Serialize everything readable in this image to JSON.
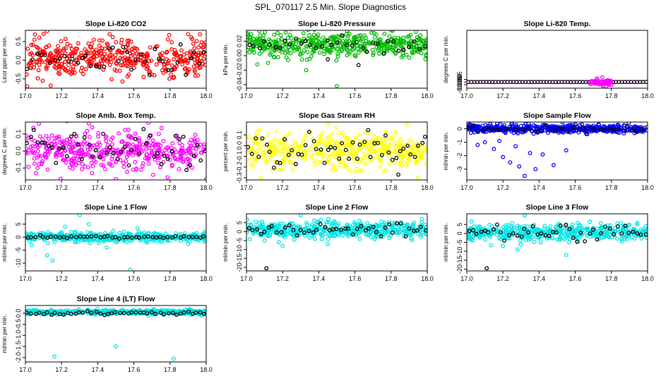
{
  "page_title": "SPL_070117  2.5 Min. Slope Diagnostics",
  "chart_data": [
    {
      "type": "scatter",
      "title": "Slope Li-820 CO2",
      "xlabel": "",
      "ylabel": "Licor ppm per min.",
      "xlim": [
        17.0,
        18.0
      ],
      "ylim": [
        -0.75,
        0.8
      ],
      "xticks": [
        17.0,
        17.2,
        17.4,
        17.6,
        17.8,
        18.0
      ],
      "xtick_labels": [
        "17.0",
        "17.2",
        "17.4",
        "17.6",
        "17.8",
        "18.0"
      ],
      "yticks": [
        -0.5,
        0.0,
        0.5
      ],
      "ytick_labels": [
        "-0.5",
        "0.0",
        "0.5"
      ],
      "series": [
        {
          "color": "#ff0000",
          "n": 420,
          "center": 0.05,
          "spread": 0.24,
          "outliers": [
            [
              17.01,
              -0.7
            ],
            [
              17.12,
              0.78
            ],
            [
              17.05,
              0.55
            ],
            [
              17.14,
              -0.68
            ],
            [
              17.9,
              0.7
            ]
          ]
        },
        {
          "color": "#000000",
          "n": 40,
          "center": 0.05,
          "spread": 0.24,
          "outliers": []
        }
      ],
      "grid": false
    },
    {
      "type": "scatter",
      "title": "Slope Li-820 Pressure",
      "xlabel": "",
      "ylabel": "kPa per min.",
      "xlim": [
        17.0,
        18.0
      ],
      "ylim": [
        -0.045,
        0.035
      ],
      "xticks": [
        17.0,
        17.2,
        17.4,
        17.6,
        17.8,
        18.0
      ],
      "xtick_labels": [
        "17.0",
        "17.2",
        "17.4",
        "17.6",
        "17.8",
        "18.0"
      ],
      "yticks": [
        -0.04,
        -0.02,
        0.0,
        0.02
      ],
      "ytick_labels": [
        "-0.04",
        "-0.02",
        "0.00",
        "0.02"
      ],
      "series": [
        {
          "color": "#00bb00",
          "n": 440,
          "center": 0.015,
          "spread": 0.008,
          "outliers": [
            [
              17.06,
              -0.012
            ],
            [
              17.5,
              -0.042
            ],
            [
              17.99,
              -0.005
            ],
            [
              17.12,
              -0.01
            ],
            [
              17.33,
              -0.02
            ]
          ]
        },
        {
          "color": "#000000",
          "n": 35,
          "center": 0.015,
          "spread": 0.006,
          "outliers": [
            [
              17.45,
              -0.005
            ],
            [
              17.62,
              -0.013
            ]
          ]
        }
      ],
      "grid": false
    },
    {
      "type": "scatter",
      "title": "Slope Li-820 Temp.",
      "xlabel": "",
      "ylabel": "degrees C per min.",
      "xlim": [
        17.0,
        18.0
      ],
      "ylim": [
        -0.012,
        0.1
      ],
      "xticks": [
        17.0,
        17.2,
        17.4,
        17.6,
        17.8,
        18.0
      ],
      "xtick_labels": [
        "17.0",
        "17.2",
        "17.4",
        "17.6",
        "17.8",
        "18.0"
      ],
      "yticks": [
        -0.005,
        0.0,
        0.005
      ],
      "ytick_labels": [
        "-0.005",
        "0.000",
        "0.005"
      ],
      "series": [
        {
          "color": "#ff00ff",
          "n": 60,
          "center": 0.0,
          "spread": 0.0,
          "outliers": []
        },
        {
          "color": "#000000",
          "n": 60,
          "center": 0.0,
          "spread": 0.0,
          "outliers": []
        }
      ],
      "grid": false
    },
    {
      "type": "scatter",
      "title": "Slope Amb. Box Temp.",
      "xlabel": "",
      "ylabel": "degrees C per min.",
      "xlim": [
        17.0,
        18.0
      ],
      "ylim": [
        -0.17,
        0.17
      ],
      "xticks": [
        17.0,
        17.2,
        17.4,
        17.6,
        17.8,
        18.0
      ],
      "xtick_labels": [
        "17.0",
        "17.2",
        "17.4",
        "17.6",
        "17.8",
        "18.0"
      ],
      "yticks": [
        -0.1,
        0.0,
        0.1
      ],
      "ytick_labels": [
        "-0.1",
        "0.0",
        "0.1"
      ],
      "series": [
        {
          "color": "#ff00ff",
          "n": 420,
          "center": 0.0,
          "spread": 0.06,
          "outliers": [
            [
              17.68,
              0.165
            ],
            [
              17.5,
              -0.165
            ],
            [
              18.0,
              -0.165
            ]
          ]
        },
        {
          "color": "#000000",
          "n": 50,
          "center": 0.0,
          "spread": 0.06,
          "outliers": []
        }
      ],
      "grid": false
    },
    {
      "type": "scatter",
      "title": "Slope Gas Stream RH",
      "xlabel": "",
      "ylabel": "percent per min.",
      "xlim": [
        17.0,
        18.0
      ],
      "ylim": [
        -0.32,
        0.22
      ],
      "xticks": [
        17.0,
        17.2,
        17.4,
        17.6,
        17.8,
        18.0
      ],
      "xtick_labels": [
        "17.0",
        "17.2",
        "17.4",
        "17.6",
        "17.8",
        "18.0"
      ],
      "yticks": [
        -0.3,
        -0.2,
        -0.1,
        0.0,
        0.1
      ],
      "ytick_labels": [
        "-0.3",
        "-0.2",
        "-0.1",
        "0.0",
        "0.1"
      ],
      "series": [
        {
          "color": "#ffff00",
          "n": 420,
          "center": -0.05,
          "spread": 0.08,
          "outliers": [
            [
              17.08,
              -0.3
            ],
            [
              17.45,
              0.2
            ],
            [
              17.95,
              -0.3
            ]
          ]
        },
        {
          "color": "#000000",
          "n": 50,
          "center": -0.05,
          "spread": 0.08,
          "outliers": [
            [
              17.84,
              -0.27
            ]
          ]
        }
      ],
      "grid": false
    },
    {
      "type": "scatter",
      "title": "Slope Sample Flow",
      "xlabel": "",
      "ylabel": "ml/min per min.",
      "xlim": [
        17.0,
        18.0
      ],
      "ylim": [
        -3.8,
        0.5
      ],
      "xticks": [
        17.0,
        17.2,
        17.4,
        17.6,
        17.8,
        18.0
      ],
      "xtick_labels": [
        "17.0",
        "17.2",
        "17.4",
        "17.6",
        "17.8",
        "18.0"
      ],
      "yticks": [
        -3,
        -2,
        -1,
        0
      ],
      "ytick_labels": [
        "-3",
        "-2",
        "-1",
        "0"
      ],
      "series": [
        {
          "color": "#0000ff",
          "n": 460,
          "center": 0.0,
          "spread": 0.15,
          "outliers": [
            [
              17.32,
              -3.5
            ],
            [
              17.29,
              -2.8
            ],
            [
              17.24,
              -2.5
            ],
            [
              17.06,
              -1.2
            ],
            [
              17.15,
              -1.5
            ],
            [
              17.2,
              -2.1
            ],
            [
              17.35,
              -1.8
            ],
            [
              17.42,
              -1.9
            ],
            [
              17.48,
              -2.7
            ],
            [
              17.27,
              -1.3
            ],
            [
              17.1,
              -1.0
            ],
            [
              17.38,
              -3.0
            ],
            [
              17.55,
              -1.6
            ],
            [
              17.18,
              -0.9
            ]
          ]
        },
        {
          "color": "#000000",
          "n": 40,
          "center": 0.0,
          "spread": 0.1,
          "outliers": []
        }
      ],
      "grid": false
    },
    {
      "type": "scatter",
      "title": "Slope Line 1 Flow",
      "xlabel": "",
      "ylabel": "ml/min per min.",
      "xlim": [
        17.0,
        18.0
      ],
      "ylim": [
        -13,
        9
      ],
      "xticks": [
        17.0,
        17.2,
        17.4,
        17.6,
        17.8,
        18.0
      ],
      "xtick_labels": [
        "17.0",
        "17.2",
        "17.4",
        "17.6",
        "17.8",
        "18.0"
      ],
      "yticks": [
        -10,
        -5,
        0,
        5
      ],
      "ytick_labels": [
        "-10",
        "-5",
        "0",
        "5"
      ],
      "series": [
        {
          "color": "#00e5e5",
          "n": 440,
          "center": 0.0,
          "spread": 0.9,
          "outliers": [
            [
              17.58,
              -12.5
            ],
            [
              17.15,
              -9
            ],
            [
              17.3,
              8.5
            ],
            [
              17.12,
              -7
            ],
            [
              17.35,
              5
            ],
            [
              17.22,
              4
            ],
            [
              17.45,
              -4
            ],
            [
              17.62,
              3.5
            ]
          ]
        },
        {
          "color": "#000000",
          "n": 45,
          "center": 0.0,
          "spread": 0.2,
          "outliers": []
        }
      ],
      "grid": false
    },
    {
      "type": "scatter",
      "title": "Slope Line 2 Flow",
      "xlabel": "",
      "ylabel": "ml/min per min.",
      "xlim": [
        17.0,
        18.0
      ],
      "ylim": [
        -22,
        10
      ],
      "xticks": [
        17.0,
        17.2,
        17.4,
        17.6,
        17.8,
        18.0
      ],
      "xtick_labels": [
        "17.0",
        "17.2",
        "17.4",
        "17.6",
        "17.8",
        "18.0"
      ],
      "yticks": [
        -20,
        -15,
        -10,
        -5,
        0,
        5
      ],
      "ytick_labels": [
        "-20",
        "-15",
        "-10",
        "-5",
        "0",
        "5"
      ],
      "series": [
        {
          "color": "#00e5e5",
          "n": 440,
          "center": 1.0,
          "spread": 2.2,
          "outliers": [
            [
              17.11,
              -20.5
            ],
            [
              17.3,
              9
            ],
            [
              17.2,
              -8
            ],
            [
              17.45,
              -7
            ],
            [
              17.38,
              -4
            ]
          ]
        },
        {
          "color": "#000000",
          "n": 45,
          "center": 1.0,
          "spread": 2.0,
          "outliers": [
            [
              17.11,
              -20.5
            ]
          ]
        }
      ],
      "grid": false
    },
    {
      "type": "scatter",
      "title": "Slope Line 3 Flow",
      "xlabel": "",
      "ylabel": "ml/min per min.",
      "xlim": [
        17.0,
        18.0
      ],
      "ylim": [
        -21,
        11
      ],
      "xticks": [
        17.0,
        17.2,
        17.4,
        17.6,
        17.8,
        18.0
      ],
      "xtick_labels": [
        "17.0",
        "17.2",
        "17.4",
        "17.6",
        "17.8",
        "18.0"
      ],
      "yticks": [
        -20,
        -15,
        -10,
        -5,
        0,
        5
      ],
      "ytick_labels": [
        "-20",
        "-15",
        "-10",
        "-5",
        "0",
        "5"
      ],
      "series": [
        {
          "color": "#00e5e5",
          "n": 440,
          "center": 0.5,
          "spread": 2.2,
          "outliers": [
            [
              17.11,
              -19.5
            ],
            [
              17.32,
              10
            ],
            [
              17.2,
              -7
            ],
            [
              17.28,
              -9
            ],
            [
              17.55,
              -12
            ]
          ]
        },
        {
          "color": "#000000",
          "n": 45,
          "center": 0.5,
          "spread": 2.0,
          "outliers": [
            [
              17.11,
              -19.5
            ]
          ]
        }
      ],
      "grid": false
    },
    {
      "type": "scatter",
      "title": "Slope Line 4 (LT) Flow",
      "xlabel": "",
      "ylabel": "ml/min per min.",
      "xlim": [
        17.0,
        18.0
      ],
      "ylim": [
        -2.2,
        0.35
      ],
      "xticks": [
        17.0,
        17.2,
        17.4,
        17.6,
        17.8,
        18.0
      ],
      "xtick_labels": [
        "17.0",
        "17.2",
        "17.4",
        "17.6",
        "17.8",
        "18.0"
      ],
      "yticks": [
        -2.0,
        -1.5,
        -1.0,
        -0.5,
        0.0
      ],
      "ytick_labels": [
        "-2.0",
        "-1.5",
        "-1.0",
        "-0.5",
        "0.0"
      ],
      "series": [
        {
          "color": "#00e5e5",
          "n": 460,
          "center": 0.05,
          "spread": 0.05,
          "outliers": [
            [
              17.16,
              -1.95
            ],
            [
              17.5,
              -1.5
            ],
            [
              17.82,
              -2.05
            ]
          ]
        },
        {
          "color": "#000000",
          "n": 45,
          "center": 0.0,
          "spread": 0.04,
          "outliers": []
        }
      ],
      "grid": false
    }
  ]
}
